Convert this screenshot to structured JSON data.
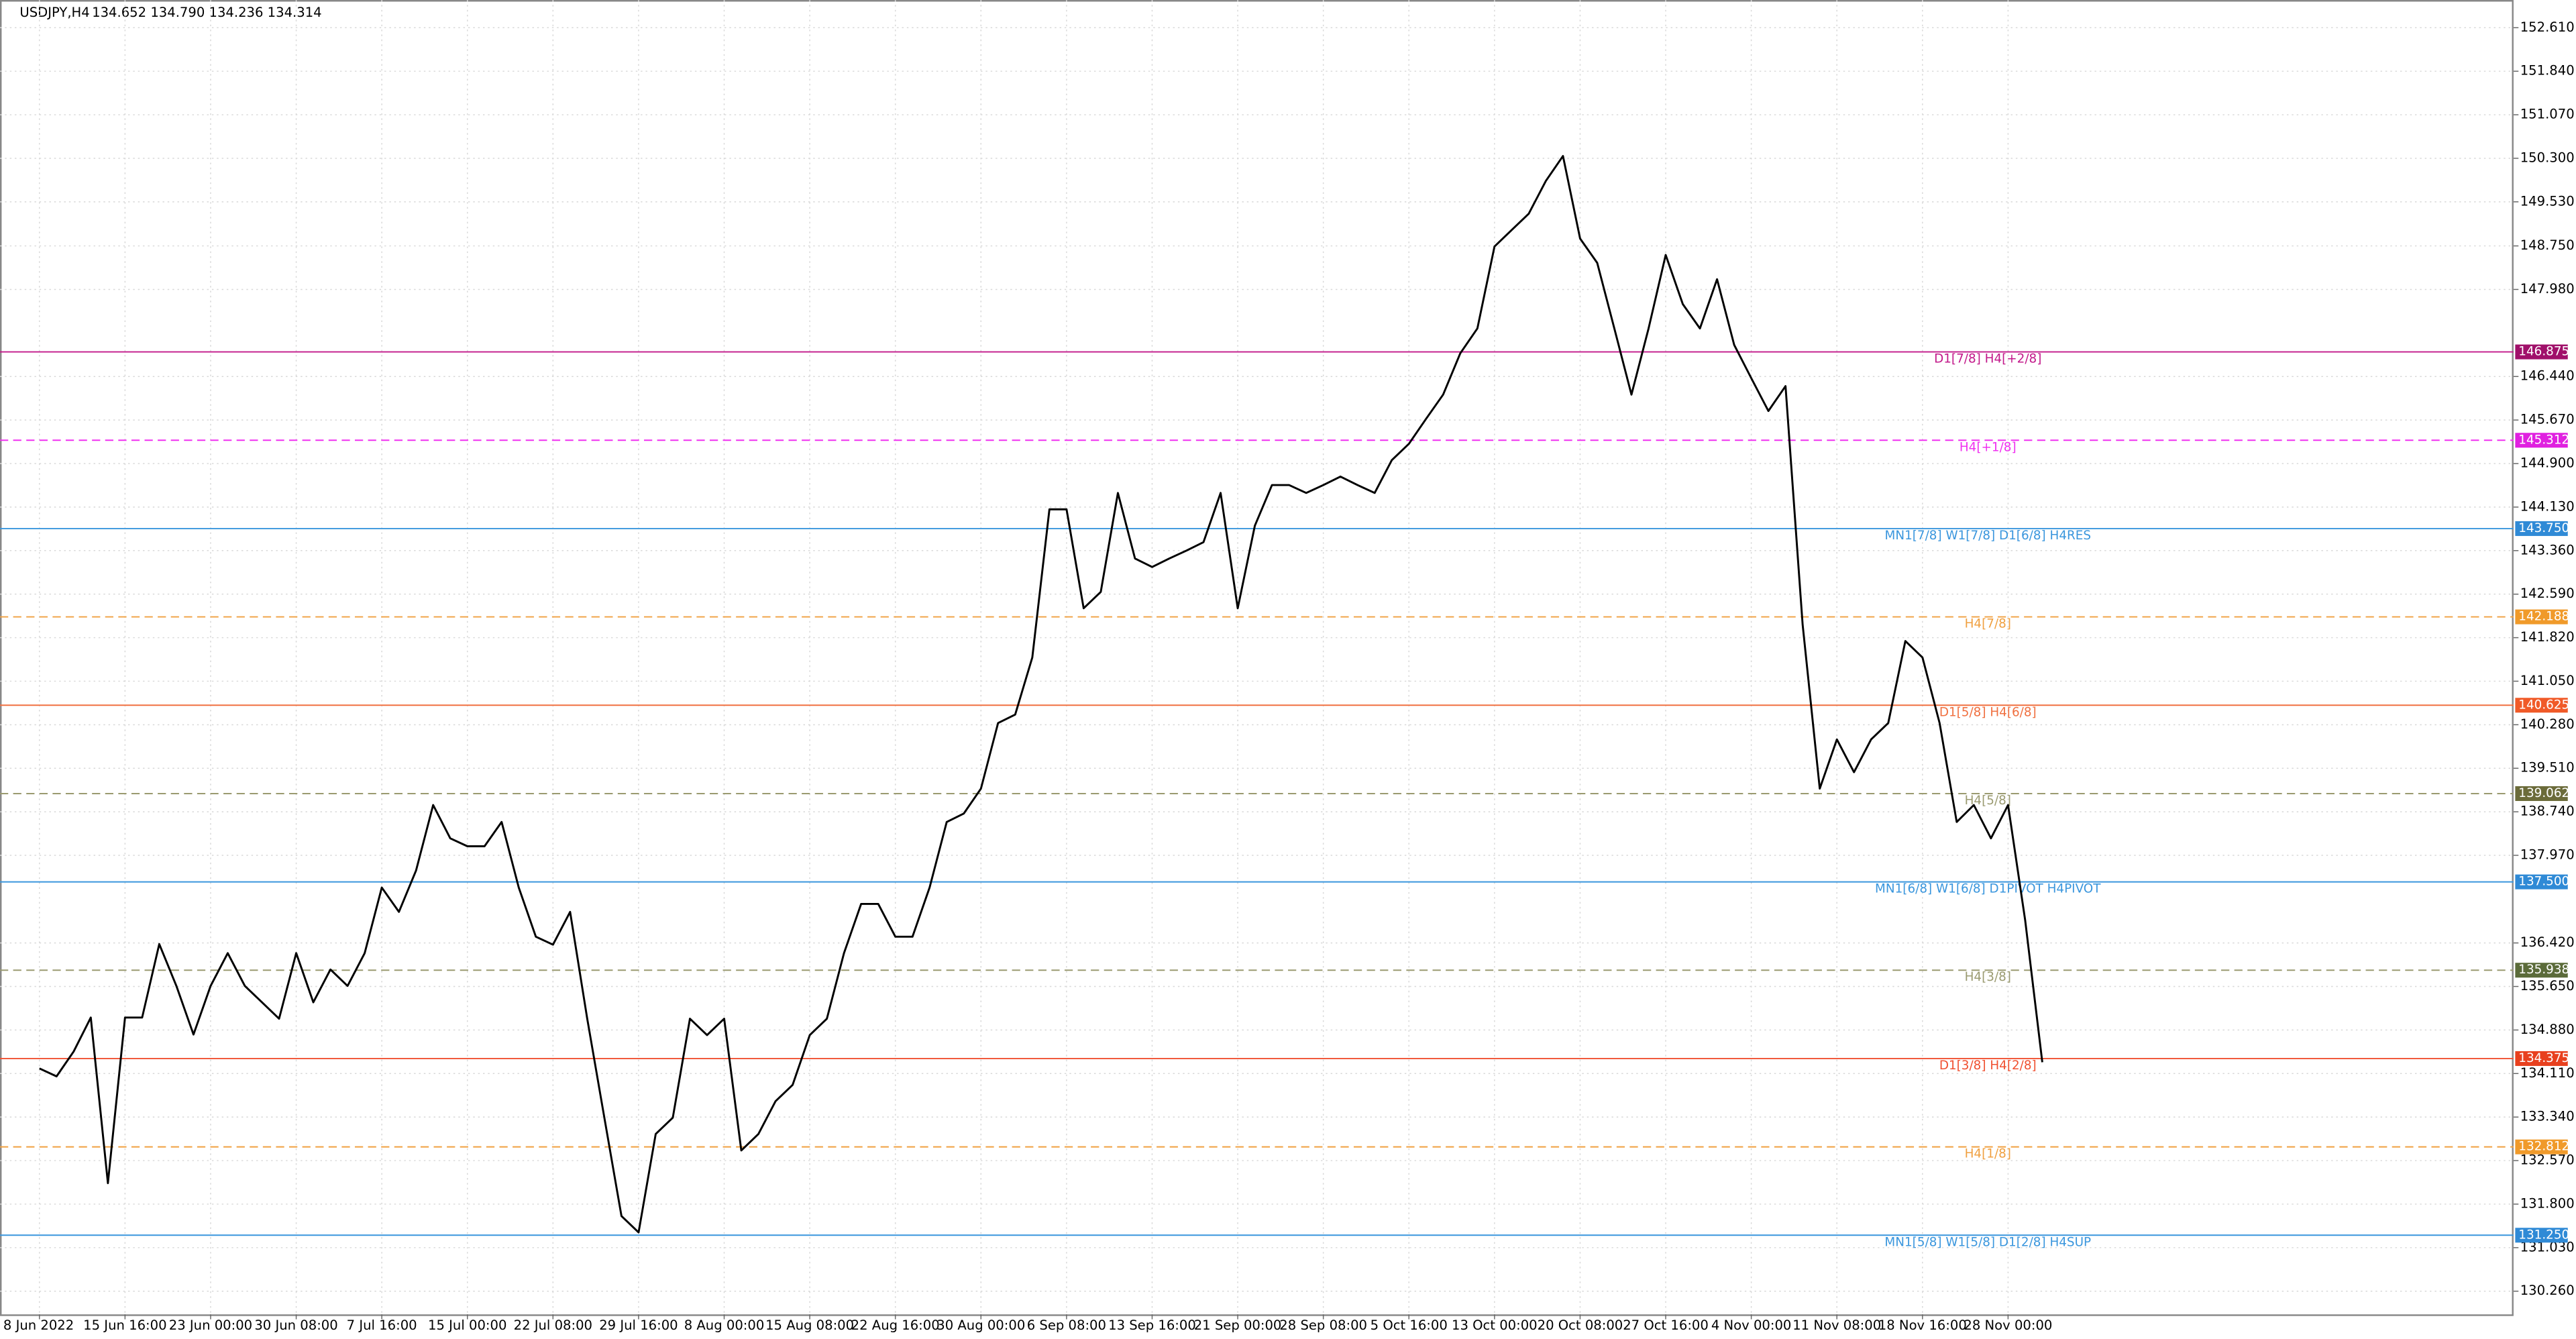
{
  "chart_data": {
    "type": "line",
    "title": "USDJPY,H4",
    "subtitle": "134.652 134.790 134.236 134.314",
    "color": "#000000",
    "grid": true,
    "categories": [
      "8 Jun 2022",
      null,
      null,
      null,
      null,
      "15 Jun 16:00",
      null,
      null,
      null,
      null,
      "23 Jun 00:00",
      null,
      null,
      null,
      null,
      "30 Jun 08:00",
      null,
      null,
      null,
      null,
      "7 Jul 16:00",
      null,
      null,
      null,
      null,
      "15 Jul 00:00",
      null,
      null,
      null,
      null,
      "22 Jul 08:00",
      null,
      null,
      null,
      null,
      "29 Jul 16:00",
      null,
      null,
      null,
      null,
      "8 Aug 00:00",
      null,
      null,
      null,
      null,
      "15 Aug 08:00",
      null,
      null,
      null,
      null,
      "22 Aug 16:00",
      null,
      null,
      null,
      null,
      "30 Aug 00:00",
      null,
      null,
      null,
      null,
      "6 Sep 08:00",
      null,
      null,
      null,
      null,
      "13 Sep 16:00",
      null,
      null,
      null,
      null,
      "21 Sep 00:00",
      null,
      null,
      null,
      null,
      "28 Sep 08:00",
      null,
      null,
      null,
      null,
      "5 Oct 16:00",
      null,
      null,
      null,
      null,
      "13 Oct 00:00",
      null,
      null,
      null,
      null,
      "20 Oct 08:00",
      null,
      null,
      null,
      null,
      "27 Oct 16:00",
      null,
      null,
      null,
      null,
      "4 Nov 00:00",
      null,
      null,
      null,
      null,
      "11 Nov 08:00",
      null,
      null,
      null,
      null,
      "18 Nov 16:00",
      null,
      null,
      null,
      null,
      "28 Nov 00:00",
      null,
      null
    ],
    "values": [
      134.2,
      134.06,
      134.5,
      135.1,
      132.17,
      135.1,
      135.1,
      136.4,
      135.66,
      134.8,
      135.66,
      136.24,
      135.66,
      135.37,
      135.08,
      136.24,
      135.37,
      135.95,
      135.66,
      136.24,
      137.4,
      136.97,
      137.7,
      138.86,
      138.27,
      138.13,
      138.13,
      138.56,
      137.4,
      136.53,
      136.39,
      136.97,
      135.08,
      133.33,
      131.59,
      131.3,
      133.04,
      133.33,
      135.08,
      134.79,
      135.08,
      132.75,
      133.04,
      133.62,
      133.91,
      134.79,
      135.08,
      136.24,
      137.11,
      137.11,
      136.53,
      136.53,
      137.4,
      138.56,
      138.71,
      139.15,
      140.31,
      140.46,
      141.47,
      144.09,
      144.09,
      142.34,
      142.63,
      144.38,
      143.22,
      143.07,
      143.22,
      143.36,
      143.51,
      144.38,
      142.34,
      143.8,
      144.52,
      144.52,
      144.38,
      144.52,
      144.67,
      144.52,
      144.38,
      144.96,
      145.25,
      145.69,
      146.12,
      146.85,
      147.29,
      148.74,
      149.03,
      149.32,
      149.9,
      150.34,
      148.88,
      148.45,
      147.29,
      146.12,
      147.29,
      148.59,
      147.72,
      147.29,
      148.16,
      147.0,
      146.41,
      145.83,
      146.27,
      142.05,
      139.15,
      140.02,
      139.44,
      140.02,
      140.31,
      141.76,
      141.47,
      140.31,
      138.56,
      138.86,
      138.27,
      138.86,
      136.82,
      134.31
    ],
    "ylim": [
      129.85,
      153.1
    ],
    "yticks": [
      {
        "value": 152.61,
        "label": "152.610"
      },
      {
        "value": 151.84,
        "label": "151.840"
      },
      {
        "value": 151.07,
        "label": "151.070"
      },
      {
        "value": 150.3,
        "label": "150.300"
      },
      {
        "value": 149.53,
        "label": "149.530"
      },
      {
        "value": 148.75,
        "label": "148.750"
      },
      {
        "value": 147.98,
        "label": "147.980"
      },
      {
        "value": 146.44,
        "label": "146.440"
      },
      {
        "value": 145.67,
        "label": "145.670"
      },
      {
        "value": 144.9,
        "label": "144.900"
      },
      {
        "value": 144.13,
        "label": "144.130"
      },
      {
        "value": 143.36,
        "label": "143.360"
      },
      {
        "value": 142.59,
        "label": "142.590"
      },
      {
        "value": 141.82,
        "label": "141.820"
      },
      {
        "value": 141.05,
        "label": "141.050"
      },
      {
        "value": 140.28,
        "label": "140.280"
      },
      {
        "value": 139.51,
        "label": "139.510"
      },
      {
        "value": 138.74,
        "label": "138.740"
      },
      {
        "value": 137.97,
        "label": "137.970"
      },
      {
        "value": 136.42,
        "label": "136.420"
      },
      {
        "value": 135.65,
        "label": "135.650"
      },
      {
        "value": 134.88,
        "label": "134.880"
      },
      {
        "value": 134.11,
        "label": "134.110"
      },
      {
        "value": 133.34,
        "label": "133.340"
      },
      {
        "value": 132.57,
        "label": "132.570"
      },
      {
        "value": 131.8,
        "label": "131.800"
      },
      {
        "value": 131.03,
        "label": "131.030"
      },
      {
        "value": 130.26,
        "label": "130.260"
      }
    ],
    "levels": [
      {
        "name": "D1[7/8] H4[+2/8]",
        "price": 146.875,
        "color": "#c2188a",
        "tag_color": "#a0106a",
        "dashed": false
      },
      {
        "name": "H4[+1/8]",
        "price": 145.312,
        "color": "#f030f0",
        "tag_color": "#e020e0",
        "dashed": true
      },
      {
        "name": "MN1[7/8] W1[7/8] D1[6/8] H4RES",
        "price": {
          "value": 143.75,
          "label": "143.750"
        },
        "color": "#3a96dd",
        "tag_color": "#2f8ad6",
        "dashed": false
      },
      {
        "name": "H4[7/8]",
        "price": 142.188,
        "color": "#f0a040",
        "tag_color": "#f09a2a",
        "dashed": true
      },
      {
        "name": "D1[5/8] H4[6/8]",
        "price": 140.625,
        "color": "#f07040",
        "tag_color": "#f05a28",
        "dashed": false
      },
      {
        "name": "H4[5/8]",
        "price": 139.062,
        "color": "#9a9a70",
        "tag_color": "#6b6b3a",
        "dashed": true
      },
      {
        "name": "MN1[6/8] W1[6/8] D1PIVOT H4PIVOT",
        "price": {
          "value": 137.5,
          "label": "137.500"
        },
        "color": "#3a96dd",
        "tag_color": "#2f8ad6",
        "dashed": false
      },
      {
        "name": "H4[3/8]",
        "price": 135.938,
        "color": "#9a9a70",
        "tag_color": "#5b6b3a",
        "dashed": true
      },
      {
        "name": "D1[3/8] H4[2/8]",
        "price": 134.375,
        "color": "#f05030",
        "tag_color": "#e8401e",
        "dashed": false
      },
      {
        "name": "H4[1/8]",
        "price": 132.812,
        "color": "#f0a040",
        "tag_color": "#f09a2a",
        "dashed": true
      },
      {
        "name": "MN1[5/8] W1[5/8] D1[2/8] H4SUP",
        "price": {
          "value": 131.25,
          "label": "131.250"
        },
        "color": "#3a96dd",
        "tag_color": "#2f8ad6",
        "dashed": false
      }
    ]
  }
}
